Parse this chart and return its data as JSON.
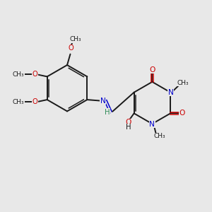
{
  "bg_color": "#e8e8e8",
  "bond_color": "#1a1a1a",
  "oxygen_color": "#cc0000",
  "nitrogen_color": "#0000cc",
  "teal_color": "#2e8b57",
  "fig_width": 3.0,
  "fig_height": 3.0,
  "dpi": 100,
  "xlim": [
    0,
    10
  ],
  "ylim": [
    0,
    10
  ]
}
